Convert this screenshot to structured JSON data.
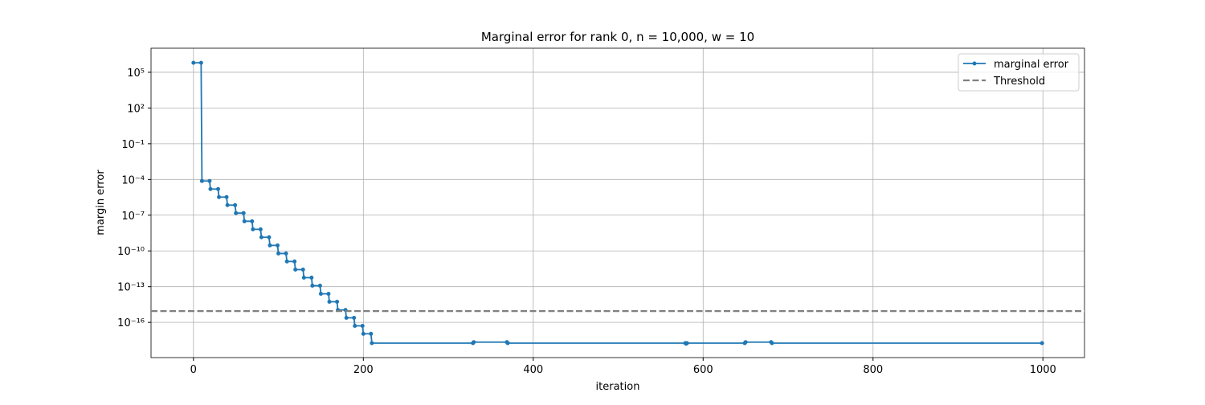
{
  "chart_data": {
    "type": "line",
    "title": "Marginal error for rank 0, n = 10,000, w = 10",
    "x_label": "iteration",
    "y_label": "margin error",
    "x": [
      0,
      9,
      10,
      19,
      20,
      29,
      30,
      39,
      40,
      49,
      50,
      59,
      60,
      69,
      70,
      79,
      80,
      89,
      90,
      99,
      100,
      109,
      110,
      119,
      120,
      129,
      130,
      139,
      140,
      149,
      150,
      159,
      160,
      169,
      170,
      179,
      180,
      189,
      190,
      199,
      200,
      209,
      210,
      329,
      330,
      369,
      370,
      579,
      580,
      581,
      649,
      650,
      680,
      681,
      999
    ],
    "series": [
      {
        "name": "marginal error",
        "color": "#1f77b4",
        "values": [
          630000,
          630000,
          7.4e-05,
          7.4e-05,
          1.56e-05,
          1.56e-05,
          3.3e-06,
          3.3e-06,
          7e-07,
          7e-07,
          1.5e-07,
          1.5e-07,
          3.1e-08,
          3.1e-08,
          6.5e-09,
          6.5e-09,
          1.4e-09,
          1.4e-09,
          2.9e-10,
          2.9e-10,
          6.1e-11,
          6.1e-11,
          1.3e-11,
          1.3e-11,
          2.7e-12,
          2.7e-12,
          5.7e-13,
          5.7e-13,
          1.2e-13,
          1.2e-13,
          2.5e-14,
          2.5e-14,
          5.4e-15,
          5.4e-15,
          1.1e-15,
          1.1e-15,
          2.4e-16,
          2.4e-16,
          5.1e-17,
          5.1e-17,
          1.1e-17,
          1.1e-17,
          1.8e-18,
          1.8e-18,
          2.2e-18,
          2.2e-18,
          1.8e-18,
          1.8e-18,
          1.6e-18,
          1.8e-18,
          1.8e-18,
          2.2e-18,
          2.2e-18,
          1.8e-18,
          1.8e-18
        ]
      }
    ],
    "threshold": {
      "name": "Threshold",
      "value": 8.88e-16,
      "color": "#808080"
    },
    "xlim": [
      -49.95,
      1048.95
    ],
    "xticks": [
      0,
      200,
      400,
      600,
      800,
      1000
    ],
    "ylim": [
      1.1e-19,
      10500000.0
    ],
    "y_log": true,
    "yticks": [
      {
        "value": 100000.0,
        "label": "10⁵"
      },
      {
        "value": 100,
        "label": "10²"
      },
      {
        "value": 0.1,
        "label": "10⁻¹"
      },
      {
        "value": 0.0001,
        "label": "10⁻⁴"
      },
      {
        "value": 1e-07,
        "label": "10⁻⁷"
      },
      {
        "value": 1e-10,
        "label": "10⁻¹⁰"
      },
      {
        "value": 1e-13,
        "label": "10⁻¹³"
      },
      {
        "value": 1e-16,
        "label": "10⁻¹⁶"
      }
    ],
    "grid": true,
    "legend": "upper right"
  }
}
